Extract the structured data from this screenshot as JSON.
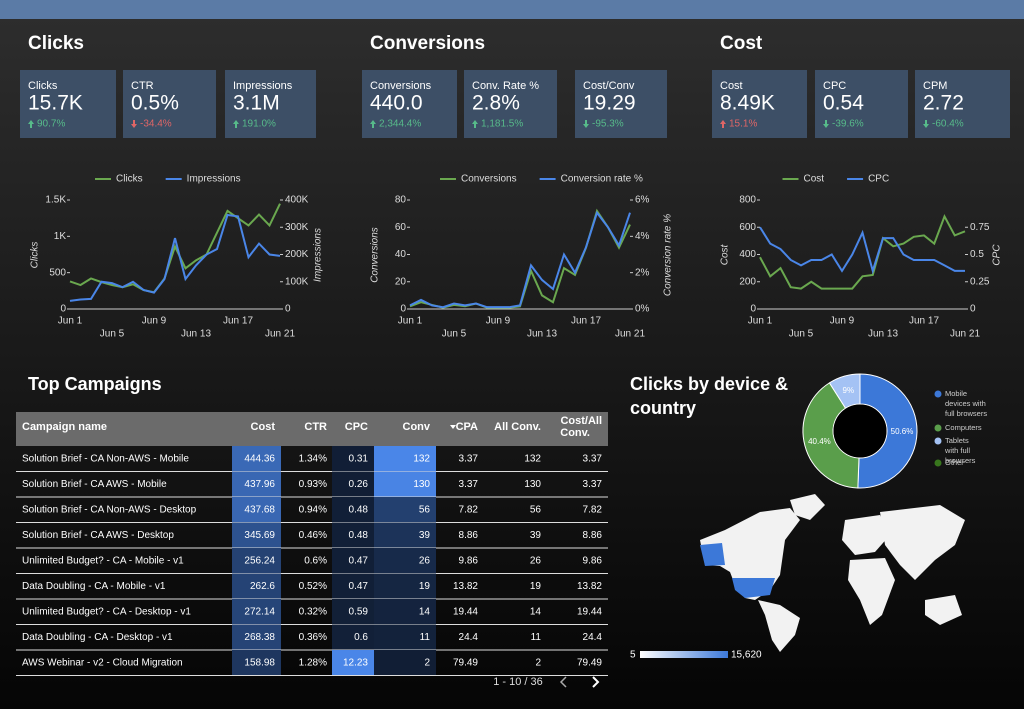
{
  "sections": [
    {
      "title": "Clicks",
      "cards": [
        {
          "label": "Clicks",
          "value": "15.7K",
          "delta": "90.7%",
          "color": "#57bb8a"
        },
        {
          "label": "CTR",
          "value": "0.5%",
          "delta": "-34.4%",
          "color": "#e06666"
        },
        {
          "label": "Impressions",
          "value": "3.1M",
          "delta": "191.0%",
          "color": "#57bb8a"
        }
      ]
    },
    {
      "title": "Conversions",
      "cards": [
        {
          "label": "Conversions",
          "value": "440.0",
          "delta": "2,344.4%",
          "color": "#57bb8a"
        },
        {
          "label": "Conv. Rate %",
          "value": "2.8%",
          "delta": "1,181.5%",
          "color": "#57bb8a"
        },
        {
          "label": "Cost/Conv",
          "value": "19.29",
          "delta": "-95.3%",
          "color": "#57bb8a"
        }
      ]
    },
    {
      "title": "Cost",
      "cards": [
        {
          "label": "Cost",
          "value": "8.49K",
          "delta": "15.1%",
          "color": "#e06666"
        },
        {
          "label": "CPC",
          "value": "0.54",
          "delta": "-39.6%",
          "color": "#57bb8a"
        },
        {
          "label": "CPM",
          "value": "2.72",
          "delta": "-60.4%",
          "color": "#57bb8a"
        }
      ]
    }
  ],
  "charts": [
    {
      "type": "line",
      "categories": [
        "Jun 1",
        null,
        null,
        null,
        "Jun 5",
        null,
        null,
        null,
        "Jun 9",
        null,
        null,
        null,
        "Jun 13",
        null,
        null,
        null,
        "Jun 17",
        null,
        null,
        null,
        "Jun 21"
      ],
      "ylabel": "Clicks",
      "y2label": "Impressions",
      "ylim": [
        0,
        1500
      ],
      "yticks": [
        0,
        500,
        {
          "value": 1000,
          "label": "1K"
        },
        {
          "value": 1500,
          "label": "1.5K"
        }
      ],
      "y2lim": [
        0,
        400000
      ],
      "y2ticks": [
        0,
        {
          "value": 100000,
          "label": "100K"
        },
        {
          "value": 200000,
          "label": "200K"
        },
        {
          "value": 300000,
          "label": "300K"
        },
        {
          "value": 400000,
          "label": "400K"
        }
      ],
      "series": [
        {
          "name": "Clicks",
          "color": "#6aa84f",
          "values": [
            380,
            330,
            420,
            370,
            330,
            300,
            340,
            260,
            230,
            420,
            860,
            560,
            670,
            750,
            1050,
            1350,
            1250,
            1150,
            1300,
            1150,
            1450
          ]
        },
        {
          "name": "Impressions",
          "color": "#4a86e8",
          "axis": "y2",
          "values": [
            30000,
            35000,
            37000,
            100000,
            95000,
            80000,
            100000,
            70000,
            60000,
            110000,
            260000,
            110000,
            160000,
            200000,
            220000,
            345000,
            340000,
            190000,
            240000,
            200000,
            195000
          ]
        }
      ]
    },
    {
      "type": "line",
      "categories": [
        "Jun 1",
        null,
        null,
        null,
        "Jun 5",
        null,
        null,
        null,
        "Jun 9",
        null,
        null,
        null,
        "Jun 13",
        null,
        null,
        null,
        "Jun 17",
        null,
        null,
        null,
        "Jun 21"
      ],
      "ylabel": "Conversions",
      "y2label": "Conversion rate %",
      "ylim": [
        0,
        80
      ],
      "yticks": [
        0,
        20,
        40,
        60,
        80
      ],
      "y2lim": [
        0,
        6
      ],
      "y2ticks": [
        {
          "value": 0,
          "label": "0%"
        },
        {
          "value": 2,
          "label": "2%"
        },
        {
          "value": 4,
          "label": "4%"
        },
        {
          "value": 6,
          "label": "6%"
        }
      ],
      "series": [
        {
          "name": "Conversions",
          "color": "#6aa84f",
          "values": [
            2,
            5,
            3,
            1,
            3,
            2,
            4,
            1,
            1,
            1,
            2,
            28,
            10,
            5,
            30,
            25,
            45,
            72,
            60,
            45,
            62
          ]
        },
        {
          "name": "Conversion rate %",
          "color": "#4a86e8",
          "axis": "y2",
          "values": [
            0.2,
            0.5,
            0.2,
            0.1,
            0.3,
            0.2,
            0.3,
            0.1,
            0.1,
            0.1,
            0.2,
            2.4,
            1.6,
            1.1,
            3.0,
            2.0,
            3.4,
            5.3,
            4.5,
            3.5,
            5.3
          ]
        }
      ]
    },
    {
      "type": "line",
      "categories": [
        "Jun 1",
        null,
        null,
        null,
        "Jun 5",
        null,
        null,
        null,
        "Jun 9",
        null,
        null,
        null,
        "Jun 13",
        null,
        null,
        null,
        "Jun 17",
        null,
        null,
        null,
        "Jun 21"
      ],
      "ylabel": "Cost",
      "y2label": "CPC",
      "ylim": [
        0,
        800
      ],
      "yticks": [
        0,
        200,
        400,
        600,
        800
      ],
      "y2lim": [
        0,
        1
      ],
      "y2ticks": [
        0,
        0.25,
        0.5,
        0.75
      ],
      "series": [
        {
          "name": "Cost",
          "color": "#6aa84f",
          "values": [
            380,
            240,
            300,
            160,
            150,
            200,
            150,
            150,
            150,
            150,
            240,
            250,
            520,
            460,
            480,
            530,
            540,
            480,
            680,
            540,
            570
          ]
        },
        {
          "name": "CPC",
          "color": "#4a86e8",
          "axis": "y2",
          "values": [
            0.75,
            0.6,
            0.55,
            0.45,
            0.4,
            0.45,
            0.45,
            0.5,
            0.35,
            0.5,
            0.7,
            0.35,
            0.65,
            0.65,
            0.5,
            0.45,
            0.45,
            0.45,
            0.4,
            0.35,
            0.35
          ]
        }
      ]
    }
  ],
  "campaigns": {
    "title": "Top Campaigns",
    "columns": [
      "Campaign name",
      "Cost",
      "CTR",
      "CPC",
      "Conv",
      "CPA",
      "All Conv.",
      "Cost/All Conv."
    ],
    "rows": [
      [
        "Solution Brief - CA Non-AWS - Mobile",
        444.36,
        "1.34%",
        0.31,
        132,
        3.37,
        132,
        3.37
      ],
      [
        "Solution Brief - CA AWS - Mobile",
        437.96,
        "0.93%",
        0.26,
        130,
        3.37,
        130,
        3.37
      ],
      [
        "Solution Brief - CA Non-AWS - Desktop",
        437.68,
        "0.94%",
        0.48,
        56,
        7.82,
        56,
        7.82
      ],
      [
        "Solution Brief - CA AWS - Desktop",
        345.69,
        "0.46%",
        0.48,
        39,
        8.86,
        39,
        8.86
      ],
      [
        "Unlimited Budget? - CA - Mobile - v1",
        256.24,
        "0.6%",
        0.47,
        26,
        9.86,
        26,
        9.86
      ],
      [
        "Data Doubling - CA - Mobile - v1",
        262.6,
        "0.52%",
        0.47,
        19,
        13.82,
        19,
        13.82
      ],
      [
        "Unlimited Budget? - CA - Desktop - v1",
        272.14,
        "0.32%",
        0.59,
        14,
        19.44,
        14,
        19.44
      ],
      [
        "Data Doubling - CA - Desktop - v1",
        268.38,
        "0.36%",
        0.6,
        11,
        24.4,
        11,
        24.4
      ],
      [
        "AWS Webinar - v2 - Cloud Migration",
        158.98,
        "1.28%",
        12.23,
        2,
        79.49,
        2,
        79.49
      ]
    ],
    "pagination": "1 - 10 / 36"
  },
  "device": {
    "title": "Clicks by device & country",
    "type": "pie",
    "slices": [
      {
        "name": "Mobile devices with full browsers",
        "color": "#3c78d8",
        "value": 50.6,
        "value_label": "50.6%"
      },
      {
        "name": "Computers",
        "color": "#5a9e4b",
        "value": 40.4,
        "value_label": "40.4%"
      },
      {
        "name": "Tablets with full browsers",
        "color": "#a4c2f4",
        "value": 9,
        "value_label": "9%"
      },
      {
        "name": "Other",
        "color": "#38761d",
        "value": 0,
        "value_label": "0%"
      }
    ]
  },
  "map": {
    "scale_min": "5",
    "scale_max": "15,620"
  }
}
